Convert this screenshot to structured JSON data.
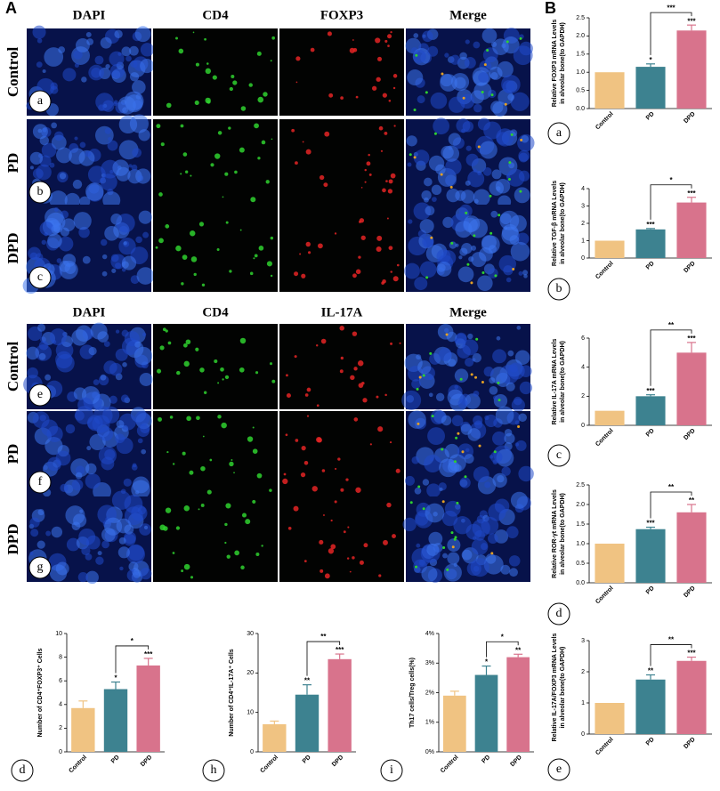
{
  "figure": {
    "panel_A": "A",
    "panel_B": "B",
    "image_groups": [
      {
        "channels": [
          "DAPI",
          "CD4",
          "FOXP3",
          "Merge"
        ],
        "rows": [
          {
            "label": "Control",
            "panel": "a"
          },
          {
            "label": "PD",
            "panel": "b"
          },
          {
            "label": "DPD",
            "panel": "c"
          }
        ]
      },
      {
        "channels": [
          "DAPI",
          "CD4",
          "IL-17A",
          "Merge"
        ],
        "rows": [
          {
            "label": "Control",
            "panel": "e"
          },
          {
            "label": "PD",
            "panel": "f"
          },
          {
            "label": "DPD",
            "panel": "g"
          }
        ]
      }
    ]
  },
  "chart_data": [
    {
      "type": "bar",
      "panel": "a",
      "y_label": [
        "Relative FOXP3 mRNA Levels",
        "in alveolar bone(to GAPDH)"
      ],
      "categories": [
        "Control",
        "PD",
        "DPD"
      ],
      "values": [
        1,
        1.15,
        2.15
      ],
      "errors": [
        null,
        0.08,
        0.15
      ],
      "colors": [
        "#f0c382",
        "#3d8290",
        "#d8738c"
      ],
      "significance": [
        null,
        "*",
        "***"
      ],
      "bracket_label": "***",
      "ylim": [
        0,
        2.5
      ],
      "yticks": [
        {
          "value": 0,
          "label": "0.0"
        },
        {
          "value": 0.5,
          "label": "0.5"
        },
        {
          "value": 1,
          "label": "1.0"
        },
        {
          "value": 1.5,
          "label": "1.5"
        },
        {
          "value": 2,
          "label": "2.0"
        },
        {
          "value": 2.5,
          "label": "2.5"
        }
      ]
    },
    {
      "type": "bar",
      "panel": "b",
      "y_label": [
        "Relative TGF-β mRNA Levels",
        "in alveolar bone(to GAPDH)"
      ],
      "categories": [
        "Control",
        "PD",
        "DPD"
      ],
      "values": [
        1,
        1.65,
        3.2
      ],
      "errors": [
        null,
        0.05,
        0.3
      ],
      "colors": [
        "#f0c382",
        "#3d8290",
        "#d8738c"
      ],
      "significance": [
        null,
        "***",
        "***"
      ],
      "bracket_label": "*",
      "ylim": [
        0,
        4
      ],
      "yticks": [
        0,
        1,
        2,
        3,
        4
      ]
    },
    {
      "type": "bar",
      "panel": "c",
      "y_label": [
        "Relative IL-17A mRNA Levels",
        "in alveolar bone(to GAPDH)"
      ],
      "categories": [
        "Control",
        "PD",
        "DPD"
      ],
      "values": [
        1,
        2,
        5
      ],
      "errors": [
        null,
        0.1,
        0.7
      ],
      "colors": [
        "#f0c382",
        "#3d8290",
        "#d8738c"
      ],
      "significance": [
        null,
        "***",
        "***"
      ],
      "bracket_label": "**",
      "ylim": [
        0,
        6
      ],
      "yticks": [
        0,
        2,
        4,
        6
      ]
    },
    {
      "type": "bar",
      "panel": "d",
      "y_label": [
        "Relative ROR-γt mRNA Levels",
        "in alveolar bone(to GAPDH)"
      ],
      "categories": [
        "Control",
        "PD",
        "DPD"
      ],
      "values": [
        1,
        1.37,
        1.8
      ],
      "errors": [
        null,
        0.05,
        0.2
      ],
      "colors": [
        "#f0c382",
        "#3d8290",
        "#d8738c"
      ],
      "significance": [
        null,
        "***",
        "**"
      ],
      "bracket_label": "**",
      "ylim": [
        0,
        2.5
      ],
      "yticks": [
        {
          "value": 0,
          "label": "0.0"
        },
        {
          "value": 0.5,
          "label": "0.5"
        },
        {
          "value": 1,
          "label": "1.0"
        },
        {
          "value": 1.5,
          "label": "1.5"
        },
        {
          "value": 2,
          "label": "2.0"
        },
        {
          "value": 2.5,
          "label": "2.5"
        }
      ]
    },
    {
      "type": "bar",
      "panel": "e",
      "y_label": [
        "Relative IL-17A/FOXP3 mRNA Levels",
        "in alveolar bone(to GAPDH)"
      ],
      "categories": [
        "Control",
        "PD",
        "DPD"
      ],
      "values": [
        1,
        1.75,
        2.35
      ],
      "errors": [
        null,
        0.15,
        0.12
      ],
      "colors": [
        "#f0c382",
        "#3d8290",
        "#d8738c"
      ],
      "significance": [
        null,
        "**",
        "***"
      ],
      "bracket_label": "**",
      "ylim": [
        0,
        3
      ],
      "yticks": [
        0,
        1,
        2,
        3
      ]
    },
    {
      "type": "bar",
      "panel": "d",
      "y_label": [
        "Number of CD4⁺FOXP3⁺ Cells"
      ],
      "categories": [
        "Control",
        "PD",
        "DPD"
      ],
      "values": [
        3.7,
        5.3,
        7.3
      ],
      "errors": [
        0.6,
        0.6,
        0.6
      ],
      "colors": [
        "#f0c382",
        "#3d8290",
        "#d8738c"
      ],
      "significance": [
        null,
        "*",
        "***"
      ],
      "bracket_label": "*",
      "ylim": [
        0,
        10
      ],
      "yticks": [
        0,
        2,
        4,
        6,
        8,
        10
      ]
    },
    {
      "type": "bar",
      "panel": "h",
      "y_label": [
        "Number of CD4⁺IL-17A⁺ Cells"
      ],
      "categories": [
        "Control",
        "PD",
        "DPD"
      ],
      "values": [
        7,
        14.5,
        23.5
      ],
      "errors": [
        0.8,
        2.5,
        1.3
      ],
      "colors": [
        "#f0c382",
        "#3d8290",
        "#d8738c"
      ],
      "significance": [
        null,
        "**",
        "***"
      ],
      "bracket_label": "**",
      "ylim": [
        0,
        30
      ],
      "yticks": [
        0,
        10,
        20,
        30
      ]
    },
    {
      "type": "bar",
      "panel": "i",
      "y_label": [
        "Th17 cells/Treg cells(%)"
      ],
      "categories": [
        "Control",
        "PD",
        "DPD"
      ],
      "values": [
        1.9,
        2.6,
        3.2
      ],
      "errors": [
        0.15,
        0.3,
        0.1
      ],
      "colors": [
        "#f0c382",
        "#3d8290",
        "#d8738c"
      ],
      "significance": [
        null,
        "*",
        "**"
      ],
      "bracket_label": "*",
      "ylim": [
        0,
        4
      ],
      "yticks": [
        {
          "value": 0,
          "label": "0%"
        },
        {
          "value": 1,
          "label": "1%"
        },
        {
          "value": 2,
          "label": "2%"
        },
        {
          "value": 3,
          "label": "3%"
        },
        {
          "value": 4,
          "label": "4%"
        }
      ]
    }
  ]
}
